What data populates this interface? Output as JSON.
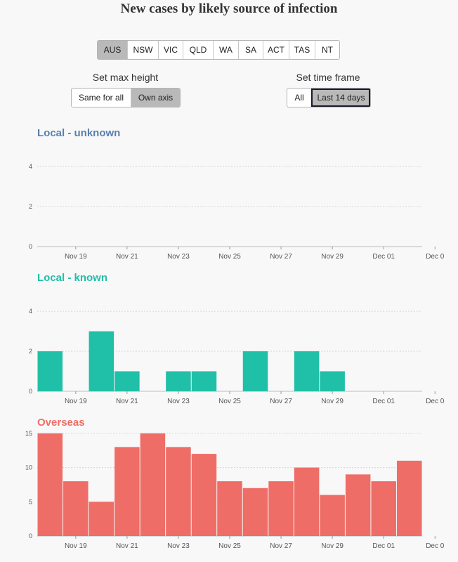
{
  "page": {
    "title": "New cases by likely source of infection"
  },
  "regions": {
    "options": [
      "AUS",
      "NSW",
      "VIC",
      "QLD",
      "WA",
      "SA",
      "ACT",
      "TAS",
      "NT"
    ],
    "selected": "AUS"
  },
  "max_height": {
    "label": "Set max height",
    "options": [
      "Same for all",
      "Own axis"
    ],
    "selected": "Own axis"
  },
  "time_frame": {
    "label": "Set time frame",
    "options": [
      "All",
      "Last 14 days"
    ],
    "selected": "Last 14 days"
  },
  "chart_data": [
    {
      "type": "bar",
      "title": "Local - unknown",
      "color": "#5a7fad",
      "bar_color": "#20bfa7",
      "categories": [
        "Nov 18",
        "Nov 19",
        "Nov 20",
        "Nov 21",
        "Nov 22",
        "Nov 23",
        "Nov 24",
        "Nov 25",
        "Nov 26",
        "Nov 27",
        "Nov 28",
        "Nov 29",
        "Nov 30",
        "Dec 01",
        "Dec 02"
      ],
      "values": [
        0,
        0,
        0,
        0,
        0,
        0,
        0,
        0,
        0,
        0,
        0,
        0,
        0,
        0,
        0
      ],
      "yticks": [
        0,
        2,
        4
      ],
      "ylim": [
        0,
        4.6
      ],
      "xticks": [
        "Nov 19",
        "Nov 21",
        "Nov 23",
        "Nov 25",
        "Nov 27",
        "Nov 29",
        "Dec 01",
        "Dec 0"
      ]
    },
    {
      "type": "bar",
      "title": "Local - known",
      "color": "#20bfa7",
      "bar_color": "#20bfa7",
      "categories": [
        "Nov 18",
        "Nov 19",
        "Nov 20",
        "Nov 21",
        "Nov 22",
        "Nov 23",
        "Nov 24",
        "Nov 25",
        "Nov 26",
        "Nov 27",
        "Nov 28",
        "Nov 29",
        "Nov 30",
        "Dec 01",
        "Dec 02"
      ],
      "values": [
        2,
        0,
        3,
        1,
        0,
        1,
        1,
        0,
        2,
        0,
        2,
        1,
        0,
        0,
        0
      ],
      "yticks": [
        0,
        2,
        4
      ],
      "ylim": [
        0,
        4.6
      ],
      "xticks": [
        "Nov 19",
        "Nov 21",
        "Nov 23",
        "Nov 25",
        "Nov 27",
        "Nov 29",
        "Dec 01",
        "Dec 0"
      ]
    },
    {
      "type": "bar",
      "title": "Overseas",
      "color": "#ef6d67",
      "bar_color": "#ef6d67",
      "categories": [
        "Nov 18",
        "Nov 19",
        "Nov 20",
        "Nov 21",
        "Nov 22",
        "Nov 23",
        "Nov 24",
        "Nov 25",
        "Nov 26",
        "Nov 27",
        "Nov 28",
        "Nov 29",
        "Nov 30",
        "Dec 01",
        "Dec 02"
      ],
      "values": [
        15,
        8,
        5,
        13,
        15,
        13,
        12,
        8,
        7,
        8,
        10,
        6,
        9,
        8,
        11
      ],
      "yticks": [
        0,
        5,
        10,
        15
      ],
      "ylim": [
        0,
        15.5
      ],
      "xticks": [
        "Nov 19",
        "Nov 21",
        "Nov 23",
        "Nov 25",
        "Nov 27",
        "Nov 29",
        "Dec 01",
        "Dec 0"
      ]
    }
  ]
}
